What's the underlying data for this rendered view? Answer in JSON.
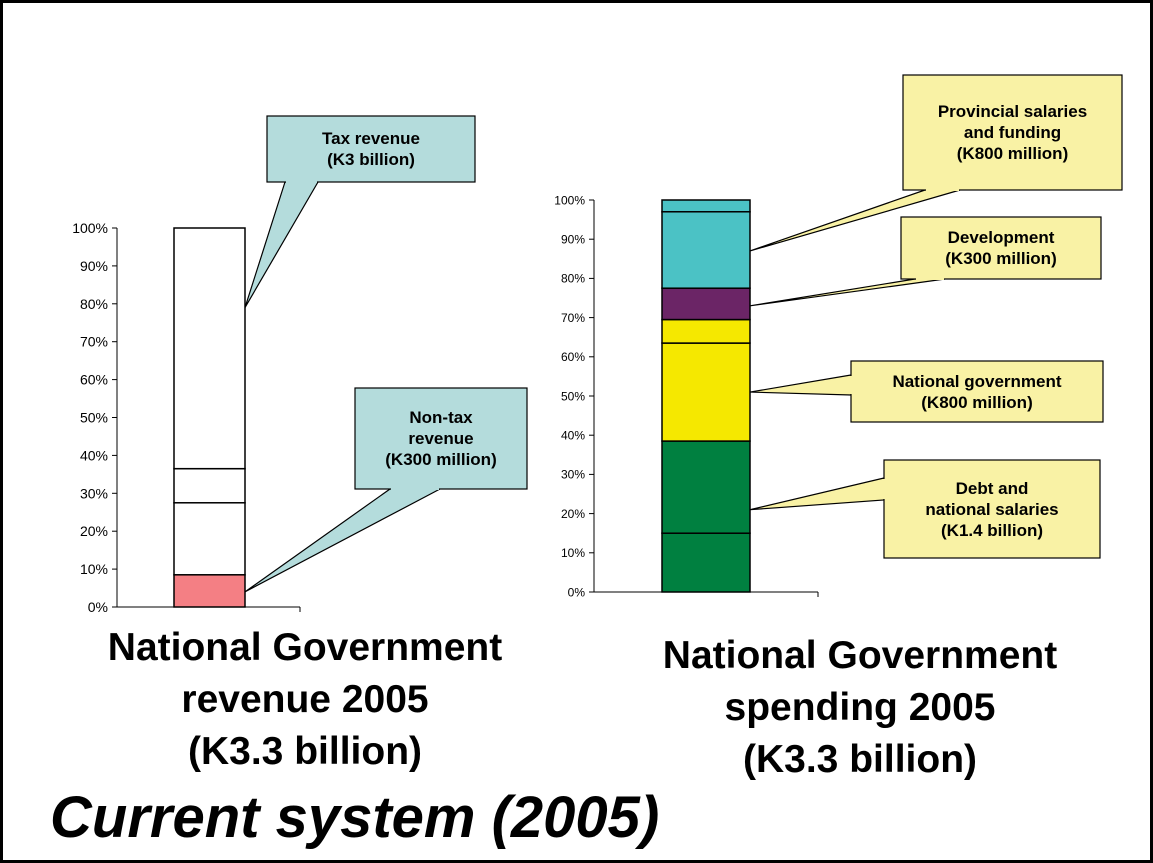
{
  "chart_data": [
    {
      "type": "bar",
      "stacked": true,
      "percent_axis": true,
      "ylim": [
        0,
        100
      ],
      "ticks": [
        "0%",
        "10%",
        "20%",
        "30%",
        "40%",
        "50%",
        "60%",
        "70%",
        "80%",
        "90%",
        "100%"
      ],
      "title_lines": [
        "National Government",
        "revenue 2005",
        "(K3.3 billion)"
      ],
      "segments": [
        {
          "from": 0,
          "to": 8.5,
          "color": "#f47f84"
        },
        {
          "from": 8.5,
          "to": 27.5,
          "color": "#ffffff"
        },
        {
          "from": 27.5,
          "to": 36.5,
          "color": "#ffffff"
        },
        {
          "from": 36.5,
          "to": 100,
          "color": "#ffffff"
        }
      ],
      "callouts": [
        {
          "lines": [
            "Tax revenue",
            "(K3 billion)"
          ],
          "target_value": 79,
          "color": "#b4dcdc"
        },
        {
          "lines": [
            "Non-tax",
            "revenue",
            "(K300 million)"
          ],
          "target_value": 4,
          "color": "#b4dcdc"
        }
      ]
    },
    {
      "type": "bar",
      "stacked": true,
      "percent_axis": true,
      "ylim": [
        0,
        100
      ],
      "ticks": [
        "0%",
        "10%",
        "20%",
        "30%",
        "40%",
        "50%",
        "60%",
        "70%",
        "80%",
        "90%",
        "100%"
      ],
      "title_lines": [
        "National Government",
        "spending 2005",
        "(K3.3 billion)"
      ],
      "segments": [
        {
          "from": 0,
          "to": 15,
          "color": "#008040"
        },
        {
          "from": 15,
          "to": 38.5,
          "color": "#008040"
        },
        {
          "from": 38.5,
          "to": 63.5,
          "color": "#f5e800"
        },
        {
          "from": 63.5,
          "to": 69.5,
          "color": "#f5e800"
        },
        {
          "from": 69.5,
          "to": 77.5,
          "color": "#6b2566"
        },
        {
          "from": 77.5,
          "to": 97,
          "color": "#4bc2c5"
        },
        {
          "from": 97,
          "to": 100,
          "color": "#4bc2c5"
        }
      ],
      "callouts": [
        {
          "lines": [
            "Provincial salaries",
            "and funding",
            "(K800 million)"
          ],
          "target_value": 87,
          "color": "#f9f2a5"
        },
        {
          "lines": [
            "Development",
            "(K300 million)"
          ],
          "target_value": 73,
          "color": "#f9f2a5"
        },
        {
          "lines": [
            "National government",
            "(K800 million)"
          ],
          "target_value": 51,
          "color": "#f9f2a5"
        },
        {
          "lines": [
            "Debt and",
            "national salaries",
            "(K1.4 billion)"
          ],
          "target_value": 21,
          "color": "#f9f2a5"
        }
      ]
    }
  ],
  "footer": {
    "subtitle": "Current system (2005)"
  }
}
